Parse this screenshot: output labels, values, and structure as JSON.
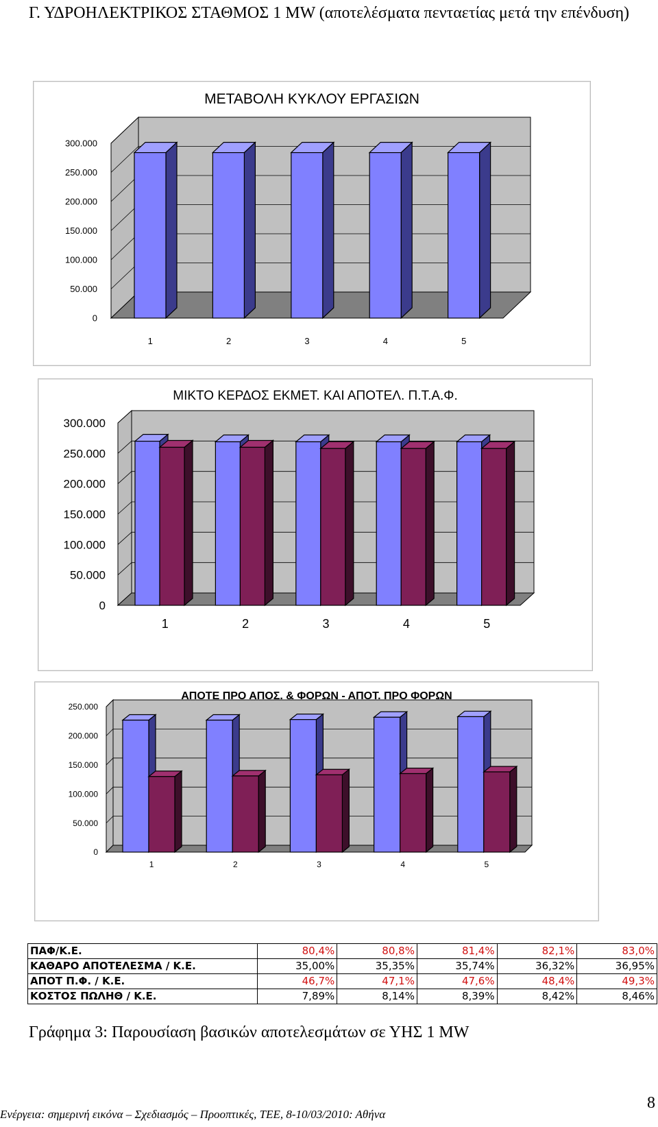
{
  "document": {
    "heading": "Γ. ΥΔΡΟΗΛΕΚΤΡΙΚΟΣ ΣΤΑΘΜΟΣ 1 MW (αποτελέσματα πενταετίας μετά την επένδυση)",
    "caption": "Γράφημα 3: Παρουσίαση βασικών αποτελεσμάτων σε ΥΗΣ 1 MW",
    "footer": "Ενέργεια: σημερινή εικόνα – Σχεδιασμός – Προοπτικές, ΤΕΕ, 8-10/03/2010: Αθήνα",
    "page_number": "8"
  },
  "colors": {
    "bar_blue": "#8080ff",
    "bar_blue_side": "#3b3b8c",
    "bar_maroon": "#7f1f56",
    "bar_maroon_side": "#3d0f2a",
    "plot_wall": "#c0c0c0",
    "plot_floor": "#808080",
    "value_red": "#d01010"
  },
  "chart_data": [
    {
      "type": "bar",
      "title": "ΜΕΤΑΒΟΛΗ ΚΥΚΛΟΥ ΕΡΓΑΣΙΩΝ",
      "categories": [
        "1",
        "2",
        "3",
        "4",
        "5"
      ],
      "series": [
        {
          "values": [
            284000,
            284000,
            284000,
            284000,
            284000
          ]
        }
      ],
      "ylim": [
        0,
        300000
      ],
      "yticks": [
        "0",
        "50.000",
        "100.000",
        "150.000",
        "200.000",
        "250.000",
        "300.000"
      ],
      "grid": true,
      "legend": "none"
    },
    {
      "type": "bar",
      "title": "ΜΙΚΤΟ ΚΕΡΔΟΣ ΕΚΜΕΤ. ΚΑΙ ΑΠΟΤΕΛ. Π.Τ.Α.Φ.",
      "categories": [
        "1",
        "2",
        "3",
        "4",
        "5"
      ],
      "series": [
        {
          "values": [
            270000,
            269000,
            269000,
            269000,
            269000
          ]
        },
        {
          "values": [
            260000,
            260000,
            258000,
            258000,
            258000
          ]
        }
      ],
      "ylim": [
        0,
        300000
      ],
      "yticks": [
        "0",
        "50.000",
        "100.000",
        "150.000",
        "200.000",
        "250.000",
        "300.000"
      ],
      "grid": true,
      "legend": "none"
    },
    {
      "type": "bar",
      "title": "ΑΠΟΤΕ ΠΡΟ ΑΠΟΣ. & ΦΟΡΩΝ - ΑΠΟΤ. ΠΡΟ ΦΟΡΩΝ",
      "categories": [
        "1",
        "2",
        "3",
        "4",
        "5"
      ],
      "series": [
        {
          "values": [
            227000,
            227000,
            228000,
            232000,
            233000
          ]
        },
        {
          "values": [
            130000,
            131000,
            133000,
            135000,
            138000
          ]
        }
      ],
      "ylim": [
        0,
        250000
      ],
      "yticks": [
        "0",
        "50.000",
        "100.000",
        "150.000",
        "200.000",
        "250.000"
      ],
      "grid": true,
      "legend": "none"
    }
  ],
  "table": {
    "rows": [
      {
        "label": "ΠΑΦ/Κ.Ε.",
        "values": [
          "80,4%",
          "80,8%",
          "81,4%",
          "82,1%",
          "83,0%"
        ],
        "red": true
      },
      {
        "label": "ΚΑΘΑΡΟ ΑΠΟΤΕΛΕΣΜΑ / Κ.Ε.",
        "values": [
          "35,00%",
          "35,35%",
          "35,74%",
          "36,32%",
          "36,95%"
        ],
        "red": false
      },
      {
        "label": "ΑΠΟΤ Π.Φ. / Κ.Ε.",
        "values": [
          "46,7%",
          "47,1%",
          "47,6%",
          "48,4%",
          "49,3%"
        ],
        "red": true
      },
      {
        "label": "ΚΟΣΤΟΣ ΠΩΛΗΘ / Κ.Ε.",
        "values": [
          "7,89%",
          "8,14%",
          "8,39%",
          "8,42%",
          "8,46%"
        ],
        "red": false
      }
    ]
  }
}
